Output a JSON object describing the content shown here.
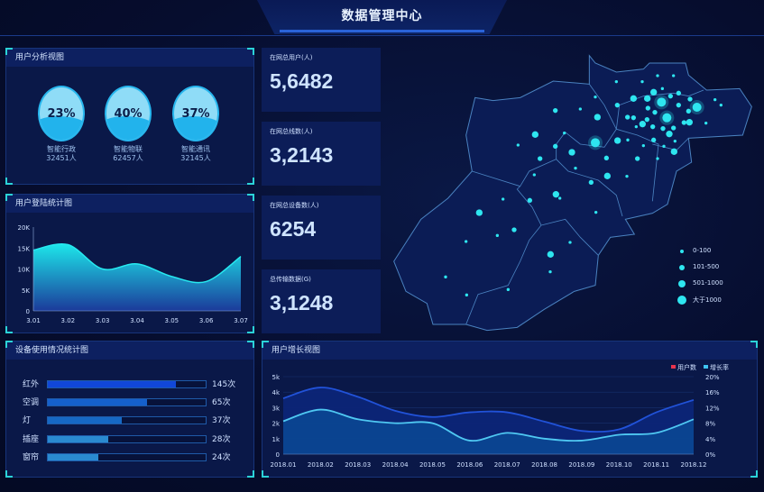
{
  "header": {
    "title": "数据管理中心"
  },
  "user_analysis": {
    "title": "用户分析视图",
    "items": [
      {
        "percent": "23%",
        "name": "智能行政",
        "count": "32451人"
      },
      {
        "percent": "40%",
        "name": "智能物联",
        "count": "62457人"
      },
      {
        "percent": "37%",
        "name": "智能通讯",
        "count": "32145人"
      }
    ]
  },
  "login_chart": {
    "title": "用户登陆统计图"
  },
  "stats": [
    {
      "label": "在网总用户(人)",
      "value": "5,6482"
    },
    {
      "label": "在网总线数(人)",
      "value": "3,2143"
    },
    {
      "label": "在网总设备数(人)",
      "value": "6254"
    },
    {
      "label": "总传输数据(G)",
      "value": "3,1248"
    }
  ],
  "map": {
    "legend": [
      {
        "label": "0-100"
      },
      {
        "label": "101-500"
      },
      {
        "label": "501-1000"
      },
      {
        "label": "大于1000"
      }
    ],
    "dot_color": "#2ee6f0"
  },
  "device_usage": {
    "title": "设备使用情况统计图",
    "items": [
      {
        "label": "红外",
        "value": "145次",
        "fill_percent": 81,
        "color": "#1147d8"
      },
      {
        "label": "空调",
        "value": "65次",
        "fill_percent": 63,
        "color": "#1560cc"
      },
      {
        "label": "灯",
        "value": "37次",
        "fill_percent": 47,
        "color": "#1668c4"
      },
      {
        "label": "插座",
        "value": "28次",
        "fill_percent": 38,
        "color": "#2a8ad0"
      },
      {
        "label": "窗帘",
        "value": "24次",
        "fill_percent": 32,
        "color": "#2a8ad0"
      }
    ]
  },
  "growth_chart": {
    "title": "用户增长视图"
  },
  "chart_data": [
    {
      "type": "area",
      "title": "用户登陆统计图",
      "categories": [
        "3.01",
        "3.02",
        "3.03",
        "3.04",
        "3.05",
        "3.06",
        "3.07"
      ],
      "values": [
        14500,
        15800,
        10000,
        11200,
        8200,
        7000,
        13000
      ],
      "yticks": [
        "0",
        "5K",
        "10K",
        "15K",
        "20K"
      ],
      "ylim": [
        0,
        20000
      ],
      "grid": false
    },
    {
      "type": "area",
      "title": "用户增长视图",
      "categories": [
        "2018.01",
        "2018.02",
        "2018.03",
        "2018.04",
        "2018.05",
        "2018.06",
        "2018.07",
        "2018.08",
        "2018.09",
        "2018.10",
        "2018.11",
        "2018.12"
      ],
      "series": [
        {
          "name": "用户数",
          "axis": "left",
          "color": "#e8344e",
          "values": [
            3600,
            4300,
            3700,
            2800,
            2400,
            2700,
            2700,
            2100,
            1500,
            1600,
            2700,
            3500
          ]
        },
        {
          "name": "增长率",
          "axis": "right",
          "color": "#3fc4f0",
          "values": [
            8.5,
            11.5,
            9,
            8,
            8,
            3.5,
            5.5,
            4,
            3.5,
            5,
            5.5,
            9
          ]
        }
      ],
      "yticks_left": [
        "0",
        "1k",
        "2k",
        "3k",
        "4k",
        "5k"
      ],
      "ylim_left": [
        0,
        5000
      ],
      "yticks_right": [
        "0%",
        "4%",
        "8%",
        "12%",
        "16%",
        "20%"
      ],
      "ylim_right": [
        0,
        20
      ],
      "grid": true,
      "legend": "top-right"
    }
  ]
}
